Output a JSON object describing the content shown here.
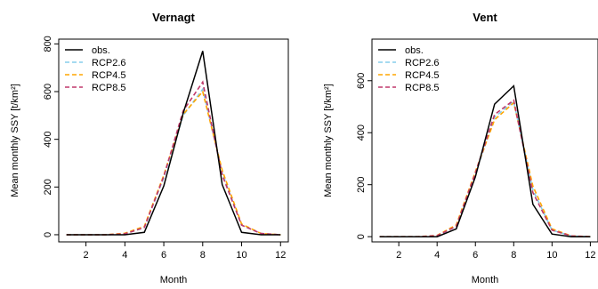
{
  "chart_data": [
    {
      "type": "line",
      "title": "Vernagt",
      "xlabel": "Month",
      "ylabel": "Mean monthly SSY [t/km²]",
      "xlim": [
        0.6,
        12.4
      ],
      "ylim": [
        -30,
        820
      ],
      "x_ticks": [
        "2",
        "4",
        "6",
        "8",
        "10",
        "12"
      ],
      "y_ticks": [
        "0",
        "200",
        "400",
        "600",
        "800"
      ],
      "grid": false,
      "legend_position": "top-left",
      "x": [
        1,
        2,
        3,
        4,
        5,
        6,
        7,
        8,
        9,
        10,
        11,
        12
      ],
      "series": [
        {
          "name": "obs.",
          "color": "#000000",
          "dash": "solid",
          "values": [
            0,
            0,
            0,
            0,
            10,
            205,
            510,
            770,
            210,
            10,
            0,
            0
          ]
        },
        {
          "name": "RCP2.6",
          "color": "#87ceeb",
          "dash": "dashed",
          "values": [
            0,
            0,
            0,
            3,
            30,
            240,
            500,
            610,
            260,
            40,
            5,
            0
          ]
        },
        {
          "name": "RCP4.5",
          "color": "#ffa500",
          "dash": "dashed",
          "values": [
            0,
            0,
            0,
            6,
            35,
            250,
            505,
            600,
            270,
            45,
            5,
            0
          ]
        },
        {
          "name": "RCP8.5",
          "color": "#c0396b",
          "dash": "dashed",
          "values": [
            0,
            0,
            0,
            4,
            30,
            245,
            520,
            640,
            250,
            40,
            5,
            0
          ]
        }
      ]
    },
    {
      "type": "line",
      "title": "Vent",
      "xlabel": "Month",
      "ylabel": "Mean monthly SSY [t/km²]",
      "xlim": [
        0.6,
        12.4
      ],
      "ylim": [
        -20,
        760
      ],
      "x_ticks": [
        "2",
        "4",
        "6",
        "8",
        "10",
        "12"
      ],
      "y_ticks": [
        "0",
        "200",
        "400",
        "600"
      ],
      "grid": false,
      "legend_position": "top-left",
      "x": [
        1,
        2,
        3,
        4,
        5,
        6,
        7,
        8,
        9,
        10,
        11,
        12
      ],
      "series": [
        {
          "name": "obs.",
          "color": "#000000",
          "dash": "solid",
          "values": [
            0,
            0,
            0,
            0,
            30,
            230,
            510,
            580,
            125,
            10,
            0,
            0
          ]
        },
        {
          "name": "RCP2.6",
          "color": "#87ceeb",
          "dash": "dashed",
          "values": [
            0,
            0,
            0,
            3,
            40,
            240,
            460,
            520,
            180,
            25,
            3,
            0
          ]
        },
        {
          "name": "RCP4.5",
          "color": "#ffa500",
          "dash": "dashed",
          "values": [
            0,
            0,
            0,
            5,
            45,
            250,
            450,
            515,
            195,
            30,
            3,
            0
          ]
        },
        {
          "name": "RCP8.5",
          "color": "#c0396b",
          "dash": "dashed",
          "values": [
            0,
            0,
            0,
            4,
            40,
            245,
            470,
            525,
            170,
            25,
            3,
            0
          ]
        }
      ]
    }
  ]
}
